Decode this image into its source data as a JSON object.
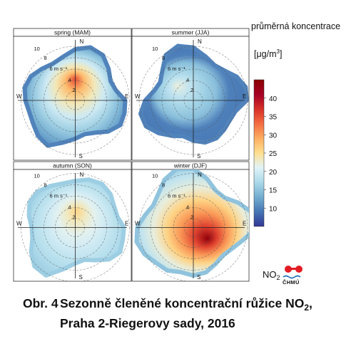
{
  "colorbar": {
    "title": "průměrná koncentrace",
    "unit_main": "[μg/m",
    "unit_sup": "3",
    "unit_close": "]",
    "ticks": [
      10,
      15,
      20,
      25,
      30,
      35,
      40
    ],
    "range": [
      5,
      45
    ],
    "colors": [
      "#313695",
      "#4575b4",
      "#74add1",
      "#abd9e9",
      "#e0f3f8",
      "#fee090",
      "#fdae61",
      "#f46d43",
      "#d73027",
      "#a50026",
      "#8b0000"
    ]
  },
  "logo": {
    "text_main": "NO",
    "text_sub": "2",
    "brand": "ČHMÚ",
    "colors": [
      "#e31b23",
      "#1f6fb5"
    ]
  },
  "caption": {
    "number": "Obr. 4",
    "line1_main": "Sezonně členěné koncentrační růžice NO",
    "line1_sub": "2",
    "line1_tail": ",",
    "line2": "Praha 2-Riegerovy sady, 2016"
  },
  "chart_data": {
    "type": "heatmap",
    "subtype": "polar wind-concentration rose",
    "rings_label_ms": [
      "2",
      "4",
      "6 m s⁻¹",
      "8",
      "10"
    ],
    "directions": [
      "N",
      "E",
      "S",
      "W"
    ],
    "panels": [
      {
        "title": "spring (MAM)",
        "center_value": 35,
        "outer_value": 10,
        "hotspot": {
          "dir_deg": 0,
          "value": 35
        }
      },
      {
        "title": "summer (JJA)",
        "center_value": 22,
        "outer_value": 10,
        "hotspot": {
          "dir_deg": 300,
          "value": 7
        }
      },
      {
        "title": "autumn (SON)",
        "center_value": 26,
        "outer_value": 16,
        "hotspot": {
          "dir_deg": 0,
          "value": 26
        }
      },
      {
        "title": "winter (DJF)",
        "center_value": 44,
        "outer_value": 15,
        "hotspot": {
          "dir_deg": 150,
          "value": 36
        }
      }
    ]
  }
}
